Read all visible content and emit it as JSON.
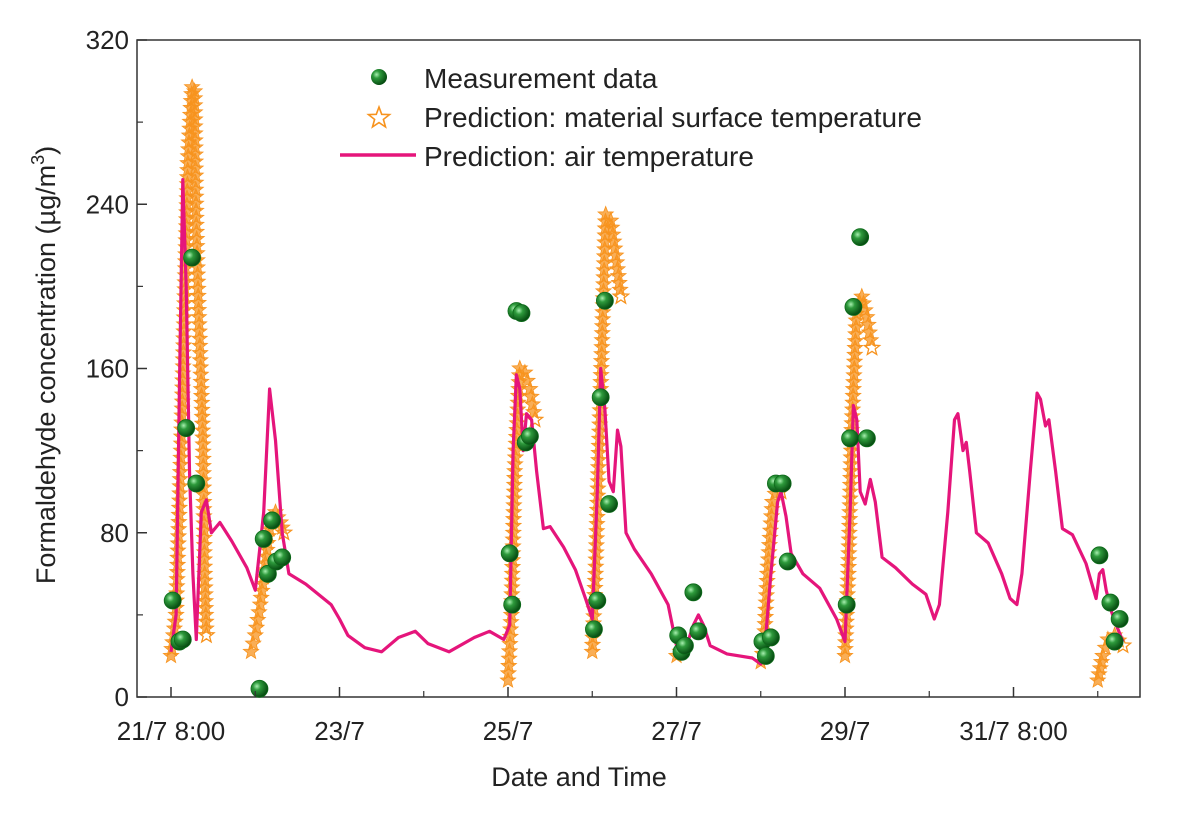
{
  "chart_data": {
    "type": "line",
    "title": "",
    "xlabel": "Date and Time",
    "ylabel_main": "Formaldehyde concentration (µg/m",
    "ylabel_sup": "3",
    "ylabel_tail": ")",
    "ylim": [
      0,
      320
    ],
    "xlim": [
      0,
      11.5
    ],
    "y_ticks": [
      0,
      80,
      160,
      240,
      320
    ],
    "y_tick_labels": [
      "0",
      "80",
      "160",
      "240",
      "320"
    ],
    "x_ticks": [
      0,
      2,
      4,
      6,
      8,
      10
    ],
    "x_tick_labels": [
      "21/7 8:00",
      "23/7",
      "25/7",
      "27/7",
      "29/7",
      "31/7 8:00"
    ],
    "legend": {
      "placement": "top-center",
      "entries": [
        {
          "label": "Measurement data",
          "marker": "circle"
        },
        {
          "label": "Prediction: material surface temperature",
          "marker": "star"
        },
        {
          "label": "Prediction: air temperature",
          "marker": "line"
        }
      ]
    },
    "colors": {
      "measurement": "#0d6b1a",
      "measurement_highlight": "#7fd68a",
      "surface": "#f7931e",
      "air": "#e5157b",
      "axis": "#333333"
    },
    "series": [
      {
        "name": "Measurement data",
        "type": "scatter",
        "points": [
          [
            0.02,
            47
          ],
          [
            0.1,
            27
          ],
          [
            0.14,
            28
          ],
          [
            0.18,
            131
          ],
          [
            0.25,
            214
          ],
          [
            0.3,
            104
          ],
          [
            1.05,
            4
          ],
          [
            1.1,
            77
          ],
          [
            1.15,
            60
          ],
          [
            1.2,
            86
          ],
          [
            1.25,
            66
          ],
          [
            1.32,
            68
          ],
          [
            4.02,
            70
          ],
          [
            4.05,
            45
          ],
          [
            4.1,
            188
          ],
          [
            4.16,
            187
          ],
          [
            4.21,
            124
          ],
          [
            4.26,
            127
          ],
          [
            5.02,
            33
          ],
          [
            5.06,
            47
          ],
          [
            5.1,
            146
          ],
          [
            5.15,
            193
          ],
          [
            5.2,
            94
          ],
          [
            6.02,
            30
          ],
          [
            6.06,
            22
          ],
          [
            6.1,
            25
          ],
          [
            6.2,
            51
          ],
          [
            6.26,
            32
          ],
          [
            7.02,
            27
          ],
          [
            7.06,
            20
          ],
          [
            7.12,
            29
          ],
          [
            7.18,
            104
          ],
          [
            7.26,
            104
          ],
          [
            7.32,
            66
          ],
          [
            8.02,
            45
          ],
          [
            8.06,
            126
          ],
          [
            8.1,
            190
          ],
          [
            8.18,
            224
          ],
          [
            8.26,
            126
          ],
          [
            11.02,
            69
          ],
          [
            11.15,
            46
          ],
          [
            11.2,
            27
          ],
          [
            11.26,
            38
          ]
        ]
      },
      {
        "name": "Prediction: material surface temperature",
        "type": "scatter",
        "segments": [
          [
            [
              0.0,
              20
            ],
            [
              0.06,
              40
            ],
            [
              0.12,
              120
            ],
            [
              0.2,
              260
            ],
            [
              0.25,
              297
            ],
            [
              0.28,
              295
            ],
            [
              0.3,
              230
            ],
            [
              0.33,
              185
            ],
            [
              0.36,
              150
            ],
            [
              0.38,
              123
            ],
            [
              0.4,
              60
            ],
            [
              0.42,
              30
            ]
          ],
          [
            [
              0.95,
              22
            ],
            [
              1.0,
              30
            ],
            [
              1.06,
              45
            ],
            [
              1.12,
              65
            ],
            [
              1.18,
              85
            ],
            [
              1.24,
              90
            ],
            [
              1.3,
              85
            ],
            [
              1.34,
              80
            ]
          ],
          [
            [
              4.0,
              8
            ],
            [
              4.04,
              40
            ],
            [
              4.08,
              110
            ],
            [
              4.14,
              160
            ],
            [
              4.2,
              158
            ],
            [
              4.26,
              150
            ],
            [
              4.32,
              135
            ]
          ],
          [
            [
              5.0,
              22
            ],
            [
              5.04,
              60
            ],
            [
              5.1,
              150
            ],
            [
              5.16,
              235
            ],
            [
              5.22,
              232
            ],
            [
              5.28,
              215
            ],
            [
              5.34,
              195
            ]
          ],
          [
            [
              6.0,
              20
            ],
            [
              6.05,
              22
            ]
          ],
          [
            [
              7.0,
              17
            ],
            [
              7.04,
              25
            ],
            [
              7.08,
              60
            ],
            [
              7.14,
              95
            ],
            [
              7.2,
              103
            ],
            [
              7.24,
              100
            ]
          ],
          [
            [
              8.0,
              20
            ],
            [
              8.04,
              60
            ],
            [
              8.08,
              130
            ],
            [
              8.14,
              190
            ],
            [
              8.2,
              195
            ],
            [
              8.26,
              185
            ],
            [
              8.32,
              170
            ]
          ],
          [
            [
              11.0,
              8
            ],
            [
              11.06,
              20
            ],
            [
              11.12,
              28
            ],
            [
              11.2,
              30
            ],
            [
              11.3,
              25
            ]
          ]
        ]
      },
      {
        "name": "Prediction: air temperature",
        "type": "line",
        "points": [
          [
            0.0,
            22
          ],
          [
            0.06,
            40
          ],
          [
            0.1,
            150
          ],
          [
            0.14,
            252
          ],
          [
            0.18,
            200
          ],
          [
            0.22,
            110
          ],
          [
            0.26,
            60
          ],
          [
            0.3,
            28
          ],
          [
            0.36,
            90
          ],
          [
            0.42,
            96
          ],
          [
            0.48,
            80
          ],
          [
            0.58,
            85
          ],
          [
            0.72,
            76
          ],
          [
            0.9,
            63
          ],
          [
            1.0,
            52
          ],
          [
            1.1,
            90
          ],
          [
            1.17,
            150
          ],
          [
            1.24,
            125
          ],
          [
            1.32,
            80
          ],
          [
            1.4,
            60
          ],
          [
            1.6,
            55
          ],
          [
            1.9,
            45
          ],
          [
            2.0,
            38
          ],
          [
            2.1,
            30
          ],
          [
            2.3,
            24
          ],
          [
            2.5,
            22
          ],
          [
            2.7,
            29
          ],
          [
            2.9,
            32
          ],
          [
            3.05,
            26
          ],
          [
            3.3,
            22
          ],
          [
            3.6,
            29
          ],
          [
            3.78,
            32
          ],
          [
            3.95,
            28
          ],
          [
            4.02,
            35
          ],
          [
            4.06,
            120
          ],
          [
            4.1,
            157
          ],
          [
            4.14,
            150
          ],
          [
            4.18,
            120
          ],
          [
            4.22,
            138
          ],
          [
            4.28,
            135
          ],
          [
            4.34,
            110
          ],
          [
            4.42,
            82
          ],
          [
            4.5,
            83
          ],
          [
            4.66,
            73
          ],
          [
            4.8,
            62
          ],
          [
            4.92,
            48
          ],
          [
            5.0,
            38
          ],
          [
            5.06,
            100
          ],
          [
            5.1,
            160
          ],
          [
            5.15,
            140
          ],
          [
            5.2,
            105
          ],
          [
            5.25,
            100
          ],
          [
            5.3,
            130
          ],
          [
            5.34,
            122
          ],
          [
            5.4,
            80
          ],
          [
            5.5,
            72
          ],
          [
            5.7,
            60
          ],
          [
            5.9,
            45
          ],
          [
            6.0,
            25
          ],
          [
            6.06,
            30
          ],
          [
            6.12,
            25
          ],
          [
            6.2,
            35
          ],
          [
            6.26,
            40
          ],
          [
            6.32,
            35
          ],
          [
            6.4,
            25
          ],
          [
            6.6,
            21
          ],
          [
            6.9,
            19
          ],
          [
            7.0,
            16
          ],
          [
            7.06,
            30
          ],
          [
            7.12,
            60
          ],
          [
            7.2,
            95
          ],
          [
            7.24,
            100
          ],
          [
            7.3,
            88
          ],
          [
            7.36,
            70
          ],
          [
            7.5,
            60
          ],
          [
            7.7,
            53
          ],
          [
            7.9,
            38
          ],
          [
            8.0,
            27
          ],
          [
            8.06,
            90
          ],
          [
            8.1,
            142
          ],
          [
            8.14,
            135
          ],
          [
            8.18,
            100
          ],
          [
            8.24,
            94
          ],
          [
            8.3,
            106
          ],
          [
            8.36,
            95
          ],
          [
            8.44,
            68
          ],
          [
            8.6,
            63
          ],
          [
            8.8,
            55
          ],
          [
            8.96,
            50
          ],
          [
            9.06,
            38
          ],
          [
            9.12,
            45
          ],
          [
            9.22,
            90
          ],
          [
            9.3,
            135
          ],
          [
            9.34,
            138
          ],
          [
            9.4,
            120
          ],
          [
            9.44,
            124
          ],
          [
            9.48,
            110
          ],
          [
            9.56,
            80
          ],
          [
            9.7,
            75
          ],
          [
            9.86,
            60
          ],
          [
            9.96,
            48
          ],
          [
            10.04,
            45
          ],
          [
            10.1,
            60
          ],
          [
            10.2,
            110
          ],
          [
            10.28,
            148
          ],
          [
            10.32,
            145
          ],
          [
            10.38,
            132
          ],
          [
            10.42,
            135
          ],
          [
            10.5,
            110
          ],
          [
            10.58,
            82
          ],
          [
            10.7,
            79
          ],
          [
            10.86,
            65
          ],
          [
            10.98,
            48
          ],
          [
            11.02,
            60
          ],
          [
            11.06,
            62
          ],
          [
            11.1,
            52
          ],
          [
            11.16,
            42
          ],
          [
            11.22,
            35
          ],
          [
            11.3,
            27
          ]
        ]
      }
    ]
  }
}
